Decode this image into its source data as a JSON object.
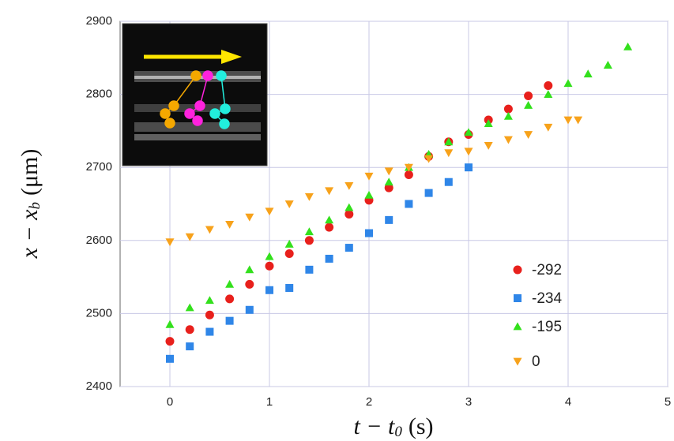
{
  "chart_data": {
    "type": "scatter",
    "x_label": {
      "lead": "t − t",
      "sub": "0",
      "unit": "(s)"
    },
    "y_label": {
      "lead": "x − x",
      "sub": "b",
      "unit": "(μm)"
    },
    "xlim": [
      -0.5,
      5
    ],
    "xticks": [
      0,
      1,
      2,
      3,
      4,
      5
    ],
    "ylim": [
      2400,
      2900
    ],
    "yticks": [
      2400,
      2500,
      2600,
      2700,
      2800,
      2900
    ],
    "grid": true,
    "legend": "lower right",
    "series": [
      {
        "name": "-292",
        "color": "#e8201c",
        "marker": "circle",
        "x": [
          0,
          0.2,
          0.4,
          0.6,
          0.8,
          1.0,
          1.2,
          1.4,
          1.6,
          1.8,
          2.0,
          2.2,
          2.4,
          2.6,
          2.8,
          3.0,
          3.2,
          3.4,
          3.6,
          3.8
        ],
        "values": [
          2462,
          2478,
          2498,
          2520,
          2540,
          2565,
          2582,
          2600,
          2618,
          2636,
          2655,
          2672,
          2690,
          2715,
          2735,
          2745,
          2765,
          2780,
          2798,
          2812
        ]
      },
      {
        "name": "-234",
        "color": "#2f86e8",
        "marker": "square",
        "x": [
          0,
          0.2,
          0.4,
          0.6,
          0.8,
          1.0,
          1.2,
          1.4,
          1.6,
          1.8,
          2.0,
          2.2,
          2.4,
          2.6,
          2.8,
          3.0
        ],
        "values": [
          2438,
          2455,
          2475,
          2490,
          2505,
          2532,
          2535,
          2560,
          2575,
          2590,
          2610,
          2628,
          2650,
          2665,
          2680,
          2700
        ]
      },
      {
        "name": "-195",
        "color": "#33e01c",
        "marker": "triangle-up",
        "x": [
          0,
          0.2,
          0.4,
          0.6,
          0.8,
          1.0,
          1.2,
          1.4,
          1.6,
          1.8,
          2.0,
          2.2,
          2.4,
          2.6,
          2.8,
          3.0,
          3.2,
          3.4,
          3.6,
          3.8,
          4.0,
          4.2,
          4.4,
          4.6
        ],
        "values": [
          2485,
          2508,
          2518,
          2540,
          2560,
          2578,
          2595,
          2612,
          2628,
          2645,
          2662,
          2680,
          2700,
          2718,
          2735,
          2748,
          2760,
          2770,
          2785,
          2800,
          2815,
          2828,
          2840,
          2865
        ]
      },
      {
        "name": "0",
        "color": "#f7a21b",
        "marker": "triangle-down",
        "x": [
          0,
          0.2,
          0.4,
          0.6,
          0.8,
          1.0,
          1.2,
          1.4,
          1.6,
          1.8,
          2.0,
          2.2,
          2.4,
          2.6,
          2.8,
          3.0,
          3.2,
          3.4,
          3.6,
          3.8,
          4.0,
          4.1
        ],
        "values": [
          2598,
          2605,
          2615,
          2622,
          2632,
          2640,
          2650,
          2660,
          2668,
          2675,
          2688,
          2695,
          2700,
          2712,
          2720,
          2722,
          2730,
          2738,
          2745,
          2755,
          2765,
          2765
        ]
      }
    ]
  }
}
